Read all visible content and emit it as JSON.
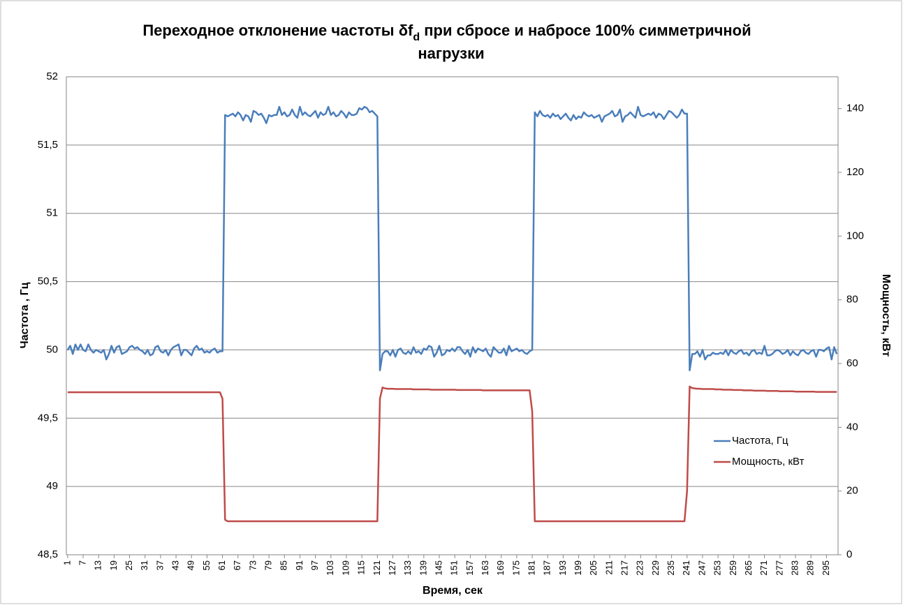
{
  "chart_data": {
    "type": "line",
    "title": {
      "line1": "Переходное отклонение частоты δf",
      "subscript": "d",
      "line1_end": " при сбросе и набросе 100% симметричной",
      "line2": "нагрузки"
    },
    "xlabel": "Время, сек",
    "ylabel": "Частота , Гц",
    "y2label": "Мощность, кВт",
    "ylim": [
      48.5,
      52
    ],
    "yticks": [
      {
        "value": 48.5,
        "label": "48,5"
      },
      49,
      {
        "value": 49.5,
        "label": "49,5"
      },
      50,
      {
        "value": 50.5,
        "label": "50,5"
      },
      51,
      {
        "value": 51.5,
        "label": "51,5"
      },
      52
    ],
    "y2lim": [
      0,
      150
    ],
    "y2ticks": [
      0,
      20,
      40,
      60,
      80,
      100,
      120,
      140
    ],
    "grid": true,
    "legend": "right",
    "categories": [
      1,
      null,
      null,
      null,
      null,
      null,
      7,
      null,
      null,
      null,
      null,
      null,
      13,
      null,
      null,
      null,
      null,
      null,
      19,
      null,
      null,
      null,
      null,
      null,
      25,
      null,
      null,
      null,
      null,
      null,
      31,
      null,
      null,
      null,
      null,
      null,
      37,
      null,
      null,
      null,
      null,
      null,
      43,
      null,
      null,
      null,
      null,
      null,
      49,
      null,
      null,
      null,
      null,
      null,
      55,
      null,
      null,
      null,
      null,
      null,
      61,
      null,
      null,
      null,
      null,
      null,
      67,
      null,
      null,
      null,
      null,
      null,
      73,
      null,
      null,
      null,
      null,
      null,
      79,
      null,
      null,
      null,
      null,
      null,
      85,
      null,
      null,
      null,
      null,
      null,
      91,
      null,
      null,
      null,
      null,
      null,
      97,
      null,
      null,
      null,
      null,
      null,
      103,
      null,
      null,
      null,
      null,
      null,
      109,
      null,
      null,
      null,
      null,
      null,
      115,
      null,
      null,
      null,
      null,
      null,
      121,
      null,
      null,
      null,
      null,
      null,
      127,
      null,
      null,
      null,
      null,
      null,
      133,
      null,
      null,
      null,
      null,
      null,
      139,
      null,
      null,
      null,
      null,
      null,
      145,
      null,
      null,
      null,
      null,
      null,
      151,
      null,
      null,
      null,
      null,
      null,
      157,
      null,
      null,
      null,
      null,
      null,
      163,
      null,
      null,
      null,
      null,
      null,
      169,
      null,
      null,
      null,
      null,
      null,
      175,
      null,
      null,
      null,
      null,
      null,
      181,
      null,
      null,
      null,
      null,
      null,
      187,
      null,
      null,
      null,
      null,
      null,
      193,
      null,
      null,
      null,
      null,
      null,
      199,
      null,
      null,
      null,
      null,
      null,
      205,
      null,
      null,
      null,
      null,
      null,
      211,
      null,
      null,
      null,
      null,
      null,
      217,
      null,
      null,
      null,
      null,
      null,
      223,
      null,
      null,
      null,
      null,
      null,
      229,
      null,
      null,
      null,
      null,
      null,
      235,
      null,
      null,
      null,
      null,
      null,
      241,
      null,
      null,
      null,
      null,
      null,
      247,
      null,
      null,
      null,
      null,
      null,
      253,
      null,
      null,
      null,
      null,
      null,
      259,
      null,
      null,
      null,
      null,
      null,
      265,
      null,
      null,
      null,
      null,
      null,
      271,
      null,
      null,
      null,
      null,
      null,
      277,
      null,
      null,
      null,
      null,
      null,
      283,
      null,
      null,
      null,
      null,
      null,
      289,
      null,
      null,
      null,
      null,
      null,
      295,
      null,
      null,
      null,
      null
    ],
    "series": [
      {
        "name": "Частота, Гц",
        "color": "#4a7ebb",
        "values": [
          50.0,
          50.03,
          49.97,
          50.04,
          50.0,
          50.04,
          50.0,
          49.99,
          50.04,
          50.0,
          49.98,
          50.0,
          49.99,
          49.98,
          50.0,
          49.93,
          49.97,
          50.03,
          49.98,
          50.02,
          50.03,
          49.97,
          49.98,
          49.99,
          50.02,
          50.03,
          50.01,
          50.02,
          50.0,
          49.99,
          49.97,
          50.0,
          49.96,
          49.97,
          50.02,
          50.03,
          49.99,
          49.98,
          50.0,
          49.96,
          50.0,
          50.02,
          50.03,
          50.04,
          49.96,
          50.0,
          50.0,
          49.98,
          49.96,
          50.01,
          50.03,
          50.0,
          50.01,
          49.98,
          49.99,
          49.98,
          50.0,
          50.01,
          49.98,
          49.99,
          49.99,
          51.72,
          51.71,
          51.72,
          51.73,
          51.71,
          51.74,
          51.72,
          51.68,
          51.72,
          51.71,
          51.67,
          51.75,
          51.74,
          51.72,
          51.73,
          51.7,
          51.66,
          51.72,
          51.71,
          51.72,
          51.72,
          51.78,
          51.72,
          51.74,
          51.71,
          51.72,
          51.76,
          51.72,
          51.7,
          51.78,
          51.72,
          51.74,
          51.72,
          51.71,
          51.73,
          51.75,
          51.7,
          51.74,
          51.72,
          51.73,
          51.78,
          51.72,
          51.74,
          51.71,
          51.72,
          51.75,
          51.73,
          51.7,
          51.74,
          51.72,
          51.72,
          51.73,
          51.77,
          51.76,
          51.78,
          51.77,
          51.74,
          51.75,
          51.73,
          51.71,
          49.85,
          49.97,
          49.99,
          49.99,
          49.96,
          50.0,
          49.95,
          50.0,
          50.01,
          49.98,
          49.97,
          49.99,
          49.97,
          50.02,
          49.98,
          49.99,
          49.97,
          50.01,
          50.0,
          50.03,
          50.02,
          49.95,
          49.98,
          50.03,
          49.96,
          49.97,
          50.0,
          49.99,
          50.01,
          49.99,
          50.02,
          50.02,
          49.99,
          49.97,
          50.0,
          49.95,
          50.02,
          49.98,
          50.01,
          50.0,
          49.99,
          50.01,
          49.97,
          49.95,
          50.02,
          50.0,
          49.98,
          49.98,
          50.01,
          49.96,
          50.03,
          49.99,
          50.0,
          50.01,
          49.99,
          50.0,
          49.98,
          49.97,
          49.99,
          50.0,
          51.74,
          51.71,
          51.75,
          51.72,
          51.71,
          51.72,
          51.7,
          51.73,
          51.71,
          51.72,
          51.69,
          51.71,
          51.73,
          51.7,
          51.68,
          51.72,
          51.69,
          51.71,
          51.7,
          51.74,
          51.72,
          51.71,
          51.72,
          51.7,
          51.71,
          51.72,
          51.67,
          51.71,
          51.72,
          51.73,
          51.75,
          51.71,
          51.72,
          51.76,
          51.67,
          51.71,
          51.72,
          51.74,
          51.72,
          51.7,
          51.78,
          51.72,
          51.71,
          51.72,
          51.73,
          51.72,
          51.74,
          51.7,
          51.73,
          51.72,
          51.69,
          51.72,
          51.75,
          51.74,
          51.72,
          51.7,
          51.72,
          51.76,
          51.73,
          51.73,
          49.85,
          49.97,
          49.97,
          49.99,
          49.95,
          50.0,
          49.93,
          49.96,
          49.96,
          49.98,
          49.97,
          49.97,
          49.98,
          49.97,
          50.0,
          49.96,
          50.0,
          49.98,
          49.97,
          49.99,
          50.0,
          49.97,
          49.98,
          49.96,
          49.99,
          50.0,
          49.97,
          49.98,
          49.97,
          50.03,
          49.96,
          49.96,
          49.97,
          49.99,
          50.0,
          49.99,
          49.97,
          49.98,
          50.0,
          49.96,
          49.99,
          49.97,
          49.96,
          49.99,
          50.0,
          49.98,
          49.97,
          49.99,
          50.0,
          49.95,
          50.0,
          50.0,
          49.99,
          50.01,
          50.02,
          49.93,
          50.02,
          49.97
        ]
      },
      {
        "name": "Мощность, кВт",
        "color": "#be4b48",
        "axis": "y2",
        "values": [
          51,
          51,
          51,
          51,
          51,
          51,
          51,
          51,
          51,
          51,
          51,
          51,
          51,
          51,
          51,
          51,
          51,
          51,
          51,
          51,
          51,
          51,
          51,
          51,
          51,
          51,
          51,
          51,
          51,
          51,
          51,
          51,
          51,
          51,
          51,
          51,
          51,
          51,
          51,
          51,
          51,
          51,
          51,
          51,
          51,
          51,
          51,
          51,
          51,
          51,
          51,
          51,
          51,
          51,
          51,
          51,
          51,
          51,
          51,
          51,
          49,
          11,
          10.5,
          10.5,
          10.5,
          10.5,
          10.5,
          10.5,
          10.5,
          10.5,
          10.5,
          10.5,
          10.5,
          10.5,
          10.5,
          10.5,
          10.5,
          10.5,
          10.5,
          10.5,
          10.5,
          10.5,
          10.5,
          10.5,
          10.5,
          10.5,
          10.5,
          10.5,
          10.5,
          10.5,
          10.5,
          10.5,
          10.5,
          10.5,
          10.5,
          10.5,
          10.5,
          10.5,
          10.5,
          10.5,
          10.5,
          10.5,
          10.5,
          10.5,
          10.5,
          10.5,
          10.5,
          10.5,
          10.5,
          10.5,
          10.5,
          10.5,
          10.5,
          10.5,
          10.5,
          10.5,
          10.5,
          10.5,
          10.5,
          10.5,
          10.5,
          49,
          52.5,
          52.2,
          52.1,
          52.1,
          52.1,
          52,
          52,
          52,
          52,
          52,
          52,
          52,
          51.9,
          51.9,
          51.9,
          51.9,
          51.9,
          51.9,
          51.9,
          51.8,
          51.8,
          51.8,
          51.8,
          51.8,
          51.8,
          51.8,
          51.8,
          51.8,
          51.8,
          51.7,
          51.7,
          51.7,
          51.7,
          51.7,
          51.7,
          51.7,
          51.7,
          51.7,
          51.7,
          51.6,
          51.6,
          51.6,
          51.6,
          51.6,
          51.6,
          51.6,
          51.6,
          51.6,
          51.6,
          51.6,
          51.6,
          51.6,
          51.6,
          51.6,
          51.6,
          51.6,
          51.6,
          51.6,
          45,
          10.5,
          10.5,
          10.5,
          10.5,
          10.5,
          10.5,
          10.5,
          10.5,
          10.5,
          10.5,
          10.5,
          10.5,
          10.5,
          10.5,
          10.5,
          10.5,
          10.5,
          10.5,
          10.5,
          10.5,
          10.5,
          10.5,
          10.5,
          10.5,
          10.5,
          10.5,
          10.5,
          10.5,
          10.5,
          10.5,
          10.5,
          10.5,
          10.5,
          10.5,
          10.5,
          10.5,
          10.5,
          10.5,
          10.5,
          10.5,
          10.5,
          10.5,
          10.5,
          10.5,
          10.5,
          10.5,
          10.5,
          10.5,
          10.5,
          10.5,
          10.5,
          10.5,
          10.5,
          10.5,
          10.5,
          10.5,
          10.5,
          10.5,
          10.5,
          20,
          52.8,
          52.3,
          52.2,
          52.1,
          52.1,
          52,
          52,
          52,
          52,
          52,
          51.9,
          51.9,
          51.9,
          51.8,
          51.8,
          51.8,
          51.8,
          51.7,
          51.7,
          51.7,
          51.7,
          51.6,
          51.6,
          51.6,
          51.6,
          51.5,
          51.5,
          51.5,
          51.5,
          51.5,
          51.4,
          51.4,
          51.4,
          51.4,
          51.4,
          51.3,
          51.3,
          51.3,
          51.3,
          51.3,
          51.3,
          51.2,
          51.2,
          51.2,
          51.2,
          51.2,
          51.2,
          51.2,
          51.2,
          51.1,
          51.1,
          51.1,
          51.1,
          51.1,
          51.1,
          51.1,
          51.1,
          51.1
        ]
      }
    ]
  }
}
